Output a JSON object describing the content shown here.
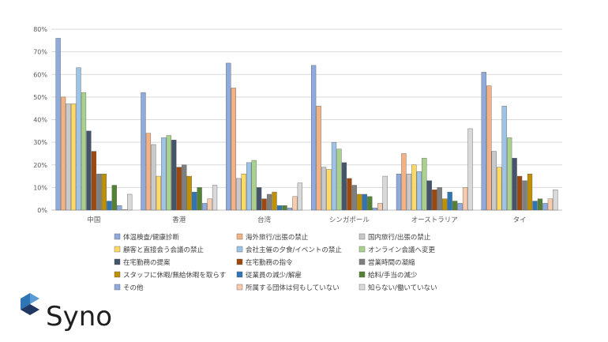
{
  "chart_data": {
    "type": "bar",
    "categories": [
      "中国",
      "香港",
      "台湾",
      "シンガポール",
      "オーストラリア",
      "タイ"
    ],
    "ylim": [
      0,
      80
    ],
    "yticks": [
      "0%",
      "10%",
      "20%",
      "30%",
      "40%",
      "50%",
      "60%",
      "70%",
      "80%"
    ],
    "grid": true,
    "legend_position": "bottom",
    "series": [
      {
        "name": "体温検査/健康診断",
        "color": "#8faadc",
        "values": [
          76,
          52,
          65,
          64,
          16,
          61
        ]
      },
      {
        "name": "海外旅行/出張の禁止",
        "color": "#f4b183",
        "values": [
          50,
          34,
          54,
          46,
          25,
          55
        ]
      },
      {
        "name": "国内旅行/出張の禁止",
        "color": "#c9c9c9",
        "values": [
          47,
          29,
          14,
          19,
          16,
          26
        ]
      },
      {
        "name": "顧客と直接会う会議の禁止",
        "color": "#ffd966",
        "values": [
          47,
          15,
          16,
          18,
          20,
          19
        ]
      },
      {
        "name": "会社主催の夕食/イベントの禁止",
        "color": "#9dc3e6",
        "values": [
          63,
          32,
          21,
          30,
          17,
          46
        ]
      },
      {
        "name": "オンライン会議へ変更",
        "color": "#a9d18e",
        "values": [
          52,
          33,
          22,
          27,
          23,
          32
        ]
      },
      {
        "name": "在宅勤務の提案",
        "color": "#44546a",
        "values": [
          35,
          31,
          10,
          21,
          13,
          23
        ]
      },
      {
        "name": "在宅勤務の指令",
        "color": "#9e480e",
        "values": [
          26,
          19,
          5,
          14,
          9,
          15
        ]
      },
      {
        "name": "営業時間の凝縮",
        "color": "#7f7f7f",
        "values": [
          16,
          20,
          7,
          11,
          10,
          13
        ]
      },
      {
        "name": "スタッフに休暇/無給休暇を取らす",
        "color": "#bf9000",
        "values": [
          16,
          15,
          8,
          7,
          5,
          16
        ]
      },
      {
        "name": "従業員の減少/解雇",
        "color": "#2e75b6",
        "values": [
          4,
          8,
          2,
          7,
          8,
          4
        ]
      },
      {
        "name": "給料/手当の減少",
        "color": "#548235",
        "values": [
          11,
          10,
          2,
          6,
          4,
          5
        ]
      },
      {
        "name": "その他",
        "color": "#8faadc",
        "values": [
          2,
          3,
          1,
          1,
          3,
          3
        ]
      },
      {
        "name": "所属する団体は何もしていない",
        "color": "#f8cbad",
        "values": [
          0,
          5,
          6,
          3,
          10,
          5
        ]
      },
      {
        "name": "知らない/働いていない",
        "color": "#d9d9d9",
        "values": [
          7,
          11,
          12,
          15,
          36,
          9
        ]
      }
    ]
  },
  "logo": {
    "text": "Syno",
    "colors": [
      "#2e75b6",
      "#5b9bd5",
      "#1f3864"
    ]
  }
}
